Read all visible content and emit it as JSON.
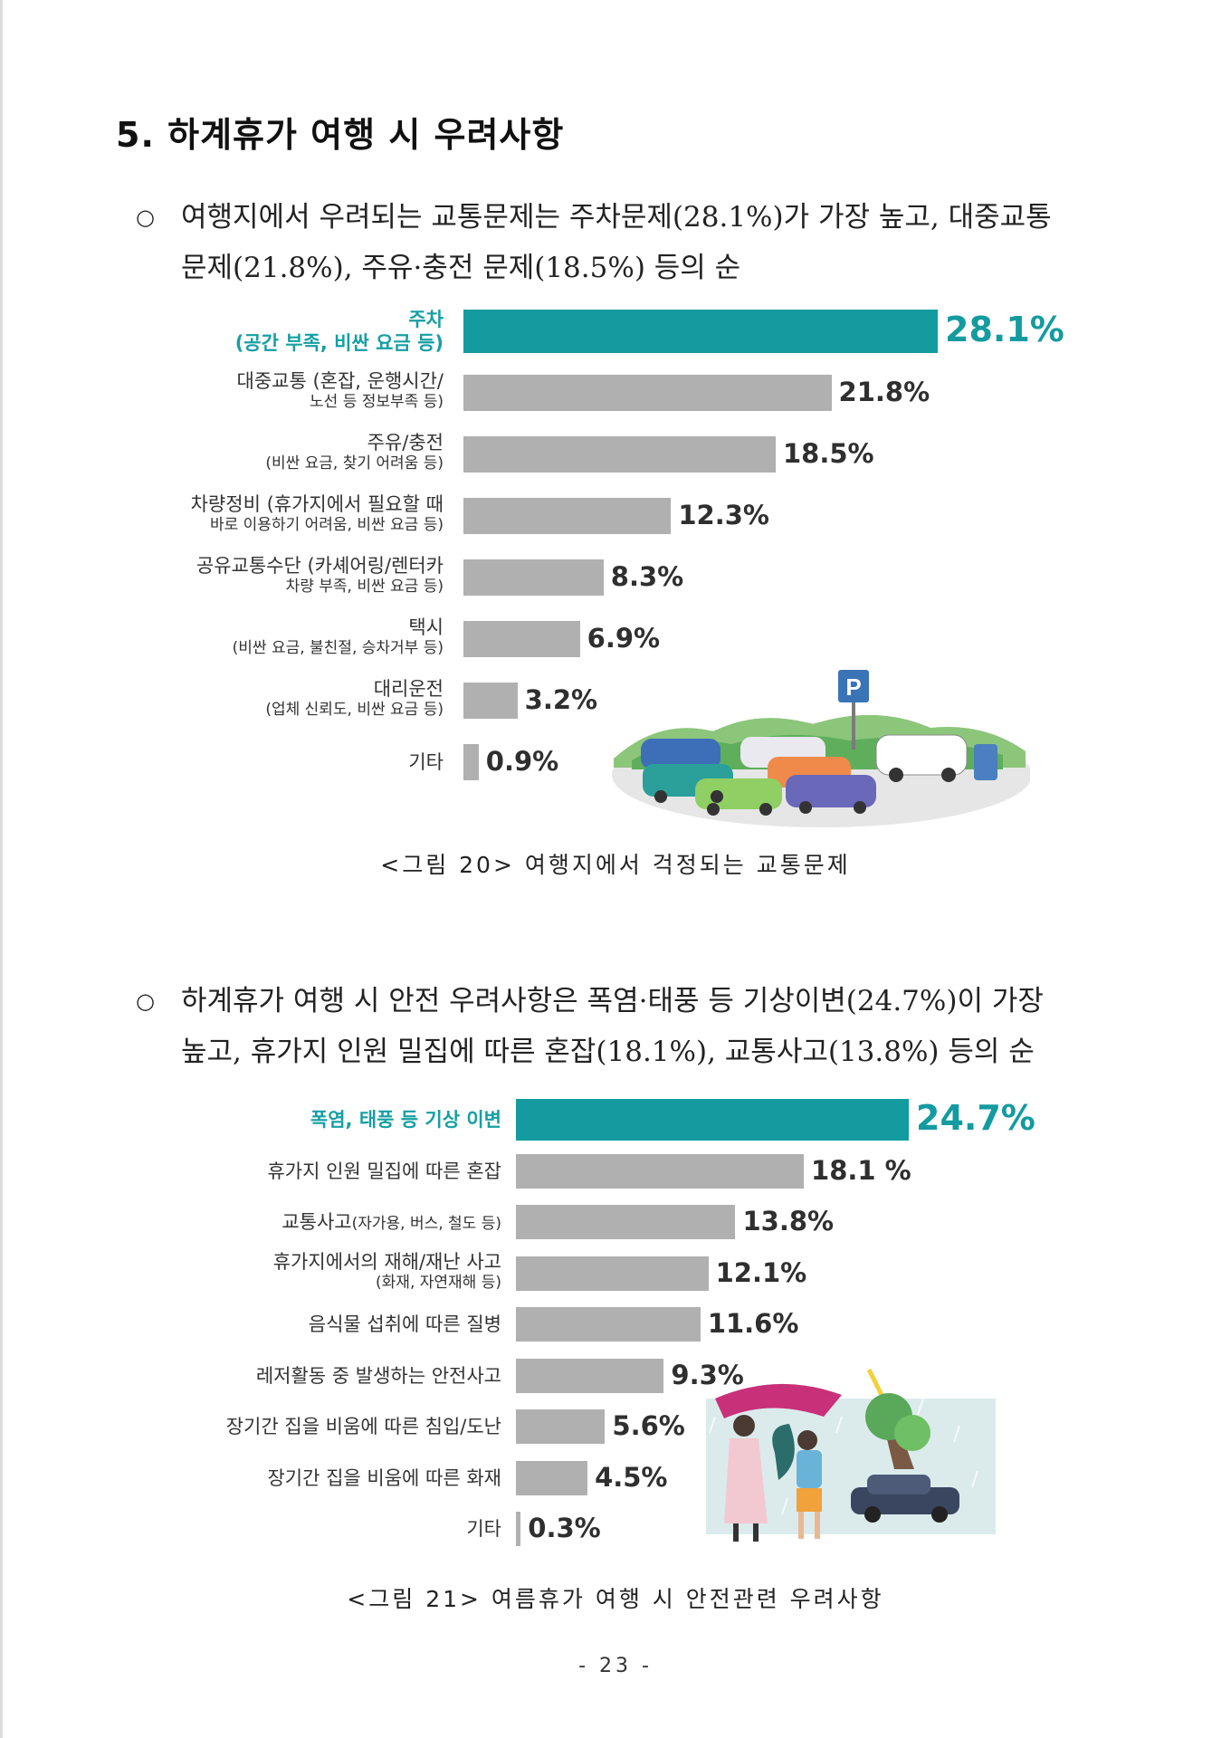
{
  "section_title": "5. 하계휴가 여행 시 우려사항",
  "bullet1": {
    "mark": "○",
    "line1": "여행지에서 우려되는 교통문제는 주차문제(28.1%)가 가장 높고, 대중교통",
    "line2": "문제(21.8%), 주유·충전 문제(18.5%) 등의 순"
  },
  "bullet2": {
    "mark": "○",
    "line1": "하계휴가 여행 시 안전 우려사항은 폭염·태풍 등 기상이변(24.7%)이 가장",
    "line2": "높고, 휴가지 인원 밀집에 따른 혼잡(18.1%), 교통사고(13.8%) 등의 순"
  },
  "caption1": "<그림 20> 여행지에서 걱정되는 교통문제",
  "caption2": "<그림 21> 여름휴가 여행 시 안전관련 우려사항",
  "page_number": "- 23 -",
  "colors": {
    "highlight": "#139ba0",
    "bar": "#b0b0b0"
  },
  "icons": [
    "parking-sign-icon",
    "parked-cars-illustration",
    "storm-people-illustration"
  ],
  "chart_data": [
    {
      "type": "bar",
      "orientation": "horizontal",
      "categories": [
        {
          "main": "주차",
          "sub": "(공간 부족, 비싼 요금 등)"
        },
        {
          "main": "대중교통 (혼잡, 운행시간/",
          "sub": "노선 등 정보부족 등)"
        },
        {
          "main": "주유/충전",
          "sub": "(비싼 요금, 찾기 어려움 등)"
        },
        {
          "main": "차량정비 (휴가지에서 필요할 때",
          "sub": "바로 이용하기 어려움, 비싼 요금 등)"
        },
        {
          "main": "공유교통수단 (카셰어링/렌터카",
          "sub": "차량 부족, 비싼 요금 등)"
        },
        {
          "main": "택시",
          "sub": "(비싼 요금, 불친절, 승차거부 등)"
        },
        {
          "main": "대리운전",
          "sub": "(업체 신뢰도, 비싼 요금 등)"
        },
        {
          "main": "기타",
          "sub": ""
        }
      ],
      "values": [
        28.1,
        21.8,
        18.5,
        12.3,
        8.3,
        6.9,
        3.2,
        0.9
      ],
      "value_labels": [
        "28.1%",
        "21.8%",
        "18.5%",
        "12.3%",
        "8.3%",
        "6.9%",
        "3.2%",
        "0.9%"
      ],
      "highlight_index": 0,
      "xlim": [
        0,
        28.1
      ]
    },
    {
      "type": "bar",
      "orientation": "horizontal",
      "categories": [
        {
          "main": "폭염, 태풍 등 기상 이변",
          "sub": ""
        },
        {
          "main": "휴가지 인원 밀집에 따른 혼잡",
          "sub": ""
        },
        {
          "main": "교통사고",
          "sub_inline": "(자가용, 버스, 철도 등)",
          "sub": ""
        },
        {
          "main": "휴가지에서의 재해/재난 사고",
          "sub": "(화재, 자연재해 등)"
        },
        {
          "main": "음식물 섭취에 따른 질병",
          "sub": ""
        },
        {
          "main": "레저활동 중 발생하는 안전사고",
          "sub": ""
        },
        {
          "main": "장기간 집을 비움에 따른 침입/도난",
          "sub": ""
        },
        {
          "main": "장기간 집을 비움에 따른 화재",
          "sub": ""
        },
        {
          "main": "기타",
          "sub": ""
        }
      ],
      "values": [
        24.7,
        18.1,
        13.8,
        12.1,
        11.6,
        9.3,
        5.6,
        4.5,
        0.3
      ],
      "value_labels": [
        "24.7%",
        "18.1 %",
        "13.8%",
        "12.1%",
        "11.6%",
        "9.3%",
        "5.6%",
        "4.5%",
        "0.3%"
      ],
      "highlight_index": 0,
      "xlim": [
        0,
        24.7
      ]
    }
  ]
}
